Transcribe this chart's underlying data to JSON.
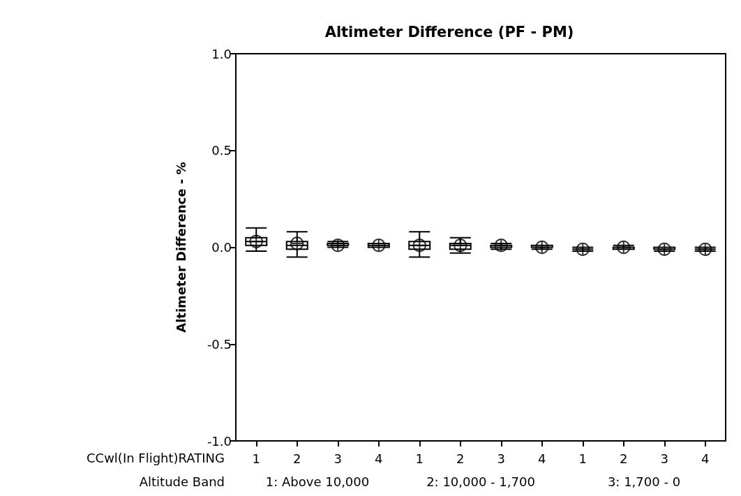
{
  "chart_data": {
    "type": "box",
    "title": "Altimeter Difference (PF - PM)",
    "ylabel": "Altimeter Difference - %",
    "color": "#000000",
    "categories": [
      "1",
      "2",
      "3",
      "4",
      "1",
      "2",
      "3",
      "4",
      "1",
      "2",
      "3",
      "4"
    ],
    "boxes": [
      {
        "low": -0.02,
        "q1": 0.01,
        "median": 0.03,
        "q3": 0.05,
        "high": 0.1,
        "mean": 0.03
      },
      {
        "low": -0.05,
        "q1": -0.01,
        "median": 0.01,
        "q3": 0.03,
        "high": 0.08,
        "mean": 0.02
      },
      {
        "low": 0.0,
        "q1": 0.01,
        "median": 0.01,
        "q3": 0.02,
        "high": 0.03,
        "mean": 0.01
      },
      {
        "low": 0.0,
        "q1": 0.0,
        "median": 0.01,
        "q3": 0.02,
        "high": 0.02,
        "mean": 0.01
      },
      {
        "low": -0.05,
        "q1": -0.01,
        "median": 0.01,
        "q3": 0.03,
        "high": 0.08,
        "mean": 0.01
      },
      {
        "low": -0.03,
        "q1": -0.01,
        "median": 0.01,
        "q3": 0.02,
        "high": 0.05,
        "mean": 0.01
      },
      {
        "low": -0.01,
        "q1": 0.0,
        "median": 0.01,
        "q3": 0.01,
        "high": 0.02,
        "mean": 0.01
      },
      {
        "low": -0.01,
        "q1": 0.0,
        "median": 0.0,
        "q3": 0.01,
        "high": 0.01,
        "mean": 0.0
      },
      {
        "low": -0.02,
        "q1": -0.01,
        "median": -0.01,
        "q3": -0.01,
        "high": 0.0,
        "mean": -0.01
      },
      {
        "low": -0.01,
        "q1": -0.01,
        "median": 0.0,
        "q3": 0.0,
        "high": 0.01,
        "mean": 0.0
      },
      {
        "low": -0.02,
        "q1": -0.01,
        "median": -0.01,
        "q3": 0.0,
        "high": 0.0,
        "mean": -0.01
      },
      {
        "low": -0.02,
        "q1": -0.01,
        "median": -0.01,
        "q3": -0.01,
        "high": 0.0,
        "mean": -0.01
      }
    ],
    "ylim": [
      -1,
      1
    ],
    "yticks": [
      {
        "value": -1,
        "label": "-1.0"
      },
      {
        "value": -0.5,
        "label": "-0.5"
      },
      {
        "value": 0,
        "label": "0.0"
      },
      {
        "value": 0.5,
        "label": "0.5"
      },
      {
        "value": 1,
        "label": "1.0"
      }
    ],
    "grid": false,
    "annotations": [
      "CCwl(In Flight)RATING",
      "Altitude Band",
      "1: Above 10,000",
      "2: 10,000 - 1,700",
      "3: 1,700 - 0"
    ]
  }
}
